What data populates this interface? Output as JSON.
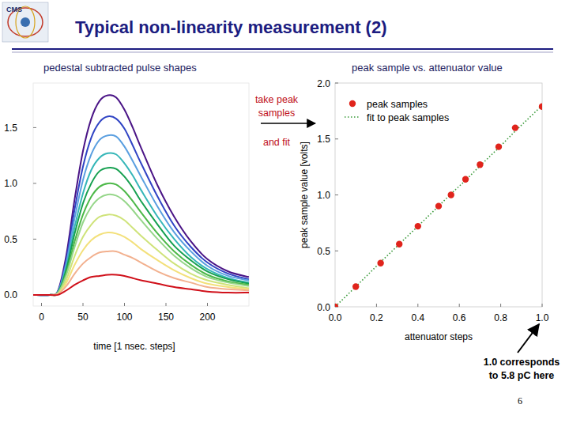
{
  "slide": {
    "title": "Typical non-linearity measurement (2)",
    "page_number": "6",
    "logo_text": "CMS"
  },
  "chart_data": [
    {
      "type": "line",
      "title": "pedestal subtracted pulse shapes",
      "x_label": "time [1 nsec. steps]",
      "x": [
        -10,
        10,
        20,
        30,
        40,
        50,
        60,
        70,
        80,
        90,
        100,
        110,
        120,
        140,
        160,
        180,
        200,
        225,
        250
      ],
      "xlim": [
        -10,
        250
      ],
      "xticks": [
        0,
        50,
        100,
        150,
        200
      ],
      "ylim": [
        -0.1,
        1.9
      ],
      "yticks": [
        {
          "value": 0,
          "label": "0.0"
        },
        {
          "value": 0.5,
          "label": "0.5"
        },
        {
          "value": 1,
          "label": "1.0"
        },
        {
          "value": 1.5,
          "label": "1.5"
        }
      ],
      "grid": false,
      "series": [
        {
          "color": "#4a1486",
          "values": [
            0,
            0,
            0.04,
            0.36,
            0.86,
            1.29,
            1.58,
            1.74,
            1.79,
            1.77,
            1.66,
            1.5,
            1.32,
            0.98,
            0.7,
            0.48,
            0.32,
            0.21,
            0.16
          ]
        },
        {
          "color": "#3044c4",
          "values": [
            0,
            0,
            0.03,
            0.32,
            0.77,
            1.15,
            1.41,
            1.55,
            1.6,
            1.58,
            1.49,
            1.34,
            1.18,
            0.88,
            0.62,
            0.43,
            0.29,
            0.19,
            0.14
          ]
        },
        {
          "color": "#5a9fe0",
          "values": [
            0,
            0,
            0.03,
            0.29,
            0.69,
            1.03,
            1.26,
            1.39,
            1.43,
            1.42,
            1.33,
            1.2,
            1.06,
            0.79,
            0.56,
            0.39,
            0.26,
            0.17,
            0.13
          ]
        },
        {
          "color": "#35b6b8",
          "values": [
            0,
            0,
            0.03,
            0.25,
            0.61,
            0.91,
            1.12,
            1.23,
            1.27,
            1.26,
            1.18,
            1.07,
            0.94,
            0.7,
            0.5,
            0.34,
            0.23,
            0.15,
            0.11
          ]
        },
        {
          "color": "#16a050",
          "values": [
            0,
            0,
            0.02,
            0.23,
            0.55,
            0.82,
            1.0,
            1.11,
            1.14,
            1.13,
            1.06,
            0.96,
            0.84,
            0.63,
            0.44,
            0.31,
            0.21,
            0.14,
            0.1
          ]
        },
        {
          "color": "#4cb848",
          "values": [
            0,
            0,
            0.02,
            0.2,
            0.48,
            0.72,
            0.88,
            0.97,
            1.0,
            0.99,
            0.93,
            0.84,
            0.74,
            0.55,
            0.39,
            0.27,
            0.18,
            0.12,
            0.09
          ]
        },
        {
          "color": "#96d68a",
          "values": [
            0,
            0,
            0.02,
            0.18,
            0.43,
            0.65,
            0.79,
            0.87,
            0.9,
            0.89,
            0.84,
            0.76,
            0.67,
            0.5,
            0.35,
            0.24,
            0.16,
            0.11,
            0.08
          ]
        },
        {
          "color": "#cfe37a",
          "values": [
            0,
            0,
            0.01,
            0.14,
            0.35,
            0.52,
            0.63,
            0.7,
            0.72,
            0.71,
            0.67,
            0.6,
            0.53,
            0.4,
            0.28,
            0.19,
            0.13,
            0.09,
            0.06
          ]
        },
        {
          "color": "#f3e07a",
          "values": [
            0,
            0,
            0.01,
            0.11,
            0.27,
            0.4,
            0.49,
            0.54,
            0.56,
            0.55,
            0.52,
            0.47,
            0.41,
            0.31,
            0.22,
            0.15,
            0.1,
            0.07,
            0.05
          ]
        },
        {
          "color": "#f2b08e",
          "values": [
            0,
            0,
            0.01,
            0.08,
            0.19,
            0.28,
            0.34,
            0.38,
            0.39,
            0.39,
            0.36,
            0.33,
            0.29,
            0.21,
            0.15,
            0.11,
            0.07,
            0.05,
            0.04
          ]
        },
        {
          "color": "#d0101a",
          "values": [
            0,
            0,
            0,
            0.04,
            0.09,
            0.13,
            0.16,
            0.17,
            0.18,
            0.18,
            0.17,
            0.15,
            0.13,
            0.1,
            0.07,
            0.05,
            0.03,
            0.02,
            0.02
          ]
        }
      ]
    },
    {
      "type": "scatter",
      "title": "peak sample vs. attenuator value",
      "x_label": "attenuator steps",
      "y_label": "peak sample value [volts]",
      "x": [
        0,
        0.1,
        0.22,
        0.31,
        0.4,
        0.5,
        0.56,
        0.63,
        0.7,
        0.79,
        0.87,
        1.0
      ],
      "xlim": [
        0,
        1
      ],
      "xticks": [
        {
          "value": 0,
          "label": "0.0"
        },
        {
          "value": 0.2,
          "label": "0.2"
        },
        {
          "value": 0.4,
          "label": "0.4"
        },
        {
          "value": 0.6,
          "label": "0.6"
        },
        {
          "value": 0.8,
          "label": "0.8"
        },
        {
          "value": 1,
          "label": "1.0"
        }
      ],
      "ylim": [
        0,
        2
      ],
      "yticks": [
        {
          "value": 0,
          "label": "0.0"
        },
        {
          "value": 0.5,
          "label": "0.5"
        },
        {
          "value": 1,
          "label": "1.0"
        },
        {
          "value": 1.5,
          "label": "1.5"
        },
        {
          "value": 2,
          "label": "2.0"
        }
      ],
      "grid": false,
      "legend": "top-left",
      "series": [
        {
          "name": "peak samples",
          "type": "scatter",
          "marker": "circle",
          "color": "#e0241c",
          "values": [
            0,
            0.18,
            0.39,
            0.56,
            0.72,
            0.9,
            1.0,
            1.14,
            1.27,
            1.43,
            1.6,
            1.79
          ]
        },
        {
          "name": "fit to peak samples",
          "type": "line",
          "line_style": "dotted",
          "color": "#3a9a3a",
          "values": [
            0,
            0.18,
            0.4,
            0.56,
            0.72,
            0.9,
            1.01,
            1.13,
            1.26,
            1.42,
            1.57,
            1.8
          ]
        }
      ],
      "annotations": [
        [
          "take peak",
          "samples"
        ],
        [
          "and fit"
        ],
        [
          "1.0 corresponds",
          "to 5.8 pC here"
        ]
      ]
    }
  ]
}
